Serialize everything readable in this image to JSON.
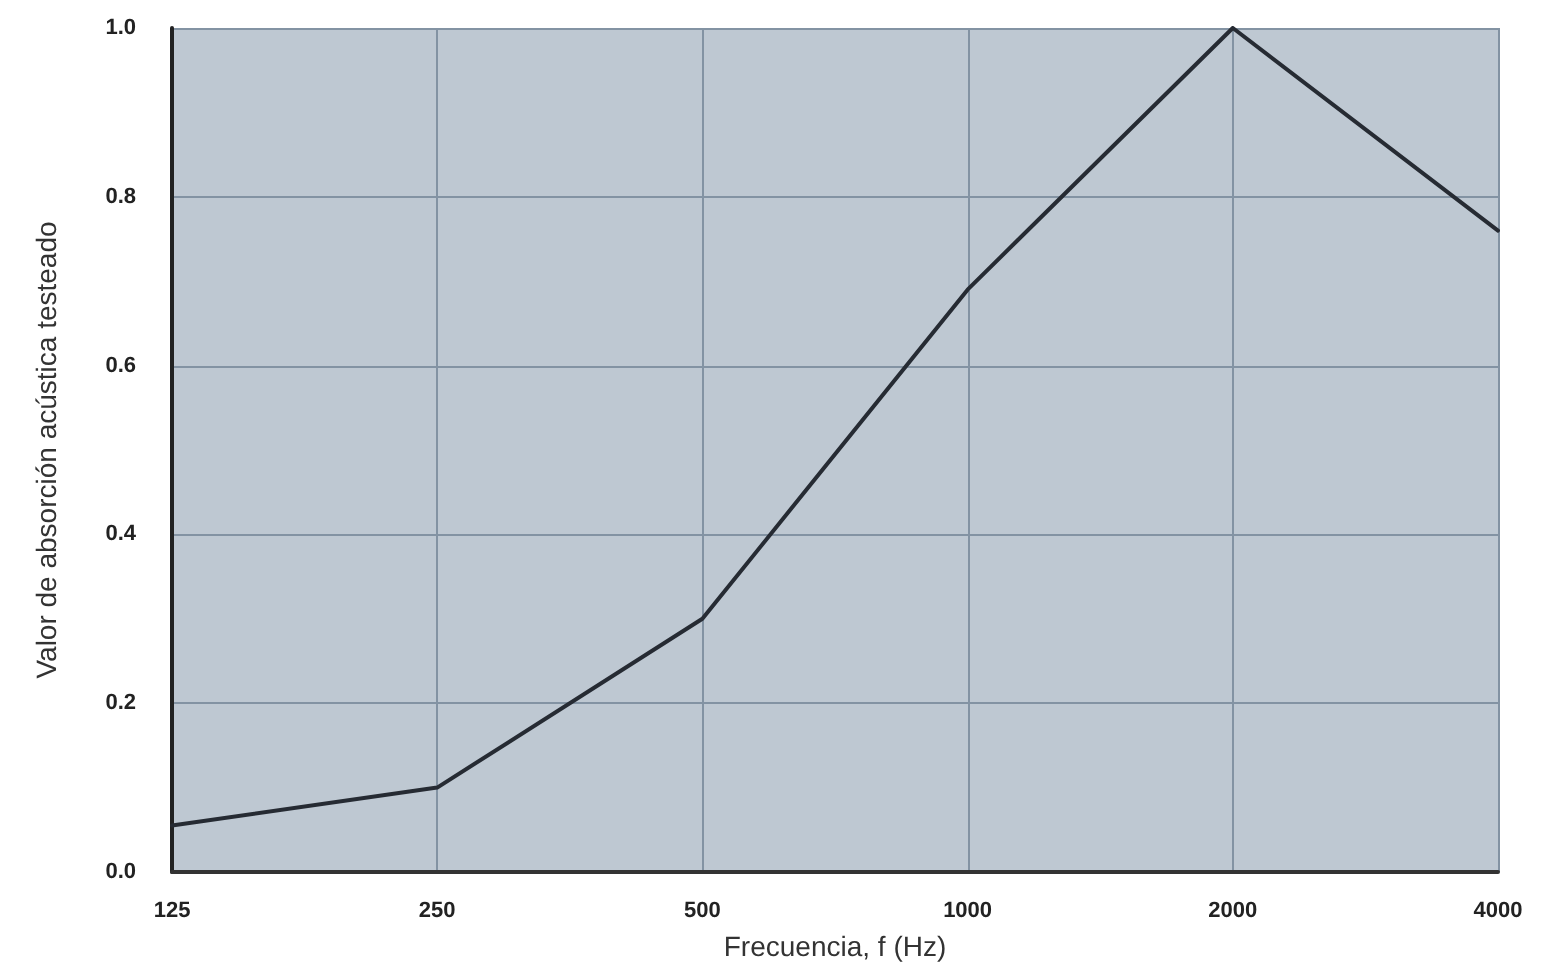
{
  "chart_data": {
    "type": "line",
    "xlabel": "Frecuencia, f (Hz)",
    "ylabel": "Valor de absorción acústica testeado",
    "categories": [
      "125",
      "250",
      "500",
      "1000",
      "2000",
      "4000"
    ],
    "series": [
      {
        "color": "#262b33",
        "values": [
          0.055,
          0.1,
          0.3,
          0.69,
          1.0,
          0.76
        ]
      }
    ],
    "ylim": [
      0,
      1.0
    ],
    "yticks": [
      {
        "value": 0,
        "label": "0.0"
      },
      {
        "value": 0.2,
        "label": "0.2"
      },
      {
        "value": 0.4,
        "label": "0.4"
      },
      {
        "value": 0.6,
        "label": "0.6"
      },
      {
        "value": 0.8,
        "label": "0.8"
      },
      {
        "value": 1.0,
        "label": "1.0"
      }
    ],
    "grid": true,
    "marker": "none",
    "line_style": "solid"
  }
}
